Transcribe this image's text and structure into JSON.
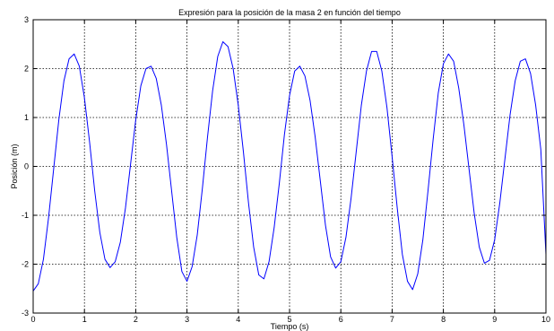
{
  "chart_data": {
    "type": "line",
    "title": "Expresión para la posición de la masa 2 en función del tiempo",
    "xlabel": "Tiempo (s)",
    "ylabel": "Posición (m)",
    "xlim": [
      0,
      10
    ],
    "ylim": [
      -3,
      3
    ],
    "x_ticks": [
      "0",
      "1",
      "2",
      "3",
      "4",
      "5",
      "6",
      "7",
      "8",
      "9",
      "10"
    ],
    "y_ticks": [
      "-3",
      "-2",
      "-1",
      "0",
      "1",
      "2",
      "3"
    ],
    "grid": true,
    "line_color": "#0000ff",
    "grid_color": "#000000",
    "series": [
      {
        "x": [
          0,
          0.1,
          0.2,
          0.3,
          0.4,
          0.5,
          0.6,
          0.7,
          0.8,
          0.9,
          1.0,
          1.1,
          1.2,
          1.3,
          1.4,
          1.5,
          1.6,
          1.7,
          1.8,
          1.9,
          2.0,
          2.1,
          2.2,
          2.3,
          2.4,
          2.5,
          2.6,
          2.7,
          2.8,
          2.9,
          3.0,
          3.1,
          3.2,
          3.3,
          3.4,
          3.5,
          3.6,
          3.7,
          3.8,
          3.9,
          4.0,
          4.1,
          4.2,
          4.3,
          4.4,
          4.5,
          4.6,
          4.7,
          4.8,
          4.9,
          5.0,
          5.1,
          5.2,
          5.3,
          5.4,
          5.5,
          5.6,
          5.7,
          5.8,
          5.9,
          6.0,
          6.1,
          6.2,
          6.3,
          6.4,
          6.5,
          6.6,
          6.7,
          6.8,
          6.9,
          7.0,
          7.1,
          7.2,
          7.3,
          7.4,
          7.5,
          7.6,
          7.7,
          7.8,
          7.9,
          8.0,
          8.1,
          8.2,
          8.3,
          8.4,
          8.5,
          8.6,
          8.7,
          8.8,
          8.9,
          9.0,
          9.1,
          9.2,
          9.3,
          9.4,
          9.5,
          9.6,
          9.7,
          9.8,
          9.9,
          10.0
        ],
        "y": [
          -2.55,
          -2.4,
          -1.9,
          -1.05,
          -0.05,
          0.95,
          1.75,
          2.2,
          2.3,
          2.05,
          1.4,
          0.5,
          -0.5,
          -1.35,
          -1.9,
          -2.07,
          -1.95,
          -1.55,
          -0.85,
          0.05,
          0.95,
          1.65,
          2.0,
          2.05,
          1.8,
          1.25,
          0.45,
          -0.5,
          -1.45,
          -2.15,
          -2.35,
          -2.05,
          -1.4,
          -0.45,
          0.6,
          1.55,
          2.25,
          2.55,
          2.45,
          2.0,
          1.25,
          0.3,
          -0.75,
          -1.65,
          -2.22,
          -2.3,
          -1.95,
          -1.25,
          -0.35,
          0.65,
          1.45,
          1.95,
          2.05,
          1.85,
          1.35,
          0.6,
          -0.3,
          -1.2,
          -1.85,
          -2.08,
          -1.95,
          -1.45,
          -0.65,
          0.3,
          1.25,
          1.95,
          2.35,
          2.35,
          1.95,
          1.2,
          0.2,
          -0.85,
          -1.8,
          -2.35,
          -2.52,
          -2.2,
          -1.5,
          -0.5,
          0.55,
          1.5,
          2.1,
          2.3,
          2.15,
          1.6,
          0.85,
          -0.05,
          -0.95,
          -1.65,
          -1.98,
          -1.92,
          -1.5,
          -0.75,
          0.15,
          1.05,
          1.75,
          2.15,
          2.2,
          1.9,
          1.25,
          0.35,
          -1.8
        ]
      }
    ]
  }
}
